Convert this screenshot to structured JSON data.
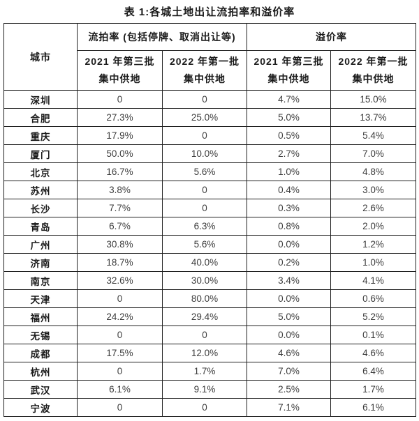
{
  "title": "表 1:各城土地出让流拍率和溢价率",
  "table": {
    "corner_header": "城市",
    "group_headers": {
      "failure_rate": "流拍率 (包括停牌、取消出让等)",
      "premium_rate": "溢价率"
    },
    "sub_headers": {
      "failure_2021": {
        "line1": "2021 年第三批",
        "line2": "集中供地"
      },
      "failure_2022": {
        "line1": "2022 年第一批",
        "line2": "集中供地"
      },
      "premium_2021": {
        "line1": "2021 年第三批",
        "line2": "集中供地"
      },
      "premium_2022": {
        "line1": "2022 年第一批",
        "line2": "集中供地"
      }
    },
    "columns": [
      "城市",
      "流拍率 2021 年第三批集中供地",
      "流拍率 2022 年第一批集中供地",
      "溢价率 2021 年第三批集中供地",
      "溢价率 2022 年第一批集中供地"
    ],
    "rows": [
      {
        "city": "深圳",
        "values": [
          "0",
          "0",
          "4.7%",
          "15.0%"
        ]
      },
      {
        "city": "合肥",
        "values": [
          "27.3%",
          "25.0%",
          "5.0%",
          "13.7%"
        ]
      },
      {
        "city": "重庆",
        "values": [
          "17.9%",
          "0",
          "0.5%",
          "5.4%"
        ]
      },
      {
        "city": "厦门",
        "values": [
          "50.0%",
          "10.0%",
          "2.7%",
          "7.0%"
        ]
      },
      {
        "city": "北京",
        "values": [
          "16.7%",
          "5.6%",
          "1.0%",
          "4.8%"
        ]
      },
      {
        "city": "苏州",
        "values": [
          "3.8%",
          "0",
          "0.4%",
          "3.0%"
        ]
      },
      {
        "city": "长沙",
        "values": [
          "7.7%",
          "0",
          "0.3%",
          "2.6%"
        ]
      },
      {
        "city": "青岛",
        "values": [
          "6.7%",
          "6.3%",
          "0.8%",
          "2.0%"
        ]
      },
      {
        "city": "广州",
        "values": [
          "30.8%",
          "5.6%",
          "0.0%",
          "1.2%"
        ]
      },
      {
        "city": "济南",
        "values": [
          "18.7%",
          "40.0%",
          "0.2%",
          "1.0%"
        ]
      },
      {
        "city": "南京",
        "values": [
          "32.6%",
          "30.0%",
          "3.4%",
          "4.1%"
        ]
      },
      {
        "city": "天津",
        "values": [
          "0",
          "80.0%",
          "0.0%",
          "0.6%"
        ]
      },
      {
        "city": "福州",
        "values": [
          "24.2%",
          "29.4%",
          "5.0%",
          "5.2%"
        ]
      },
      {
        "city": "无锡",
        "values": [
          "0",
          "0",
          "0.0%",
          "0.1%"
        ]
      },
      {
        "city": "成都",
        "values": [
          "17.5%",
          "12.0%",
          "4.6%",
          "4.6%"
        ]
      },
      {
        "city": "杭州",
        "values": [
          "0",
          "1.7%",
          "7.0%",
          "6.4%"
        ]
      },
      {
        "city": "武汉",
        "values": [
          "6.1%",
          "9.1%",
          "2.5%",
          "1.7%"
        ]
      },
      {
        "city": "宁波",
        "values": [
          "0",
          "0",
          "7.1%",
          "6.1%"
        ]
      }
    ],
    "colors": {
      "border": "#1f1f1f",
      "header_text": "#1a1a1a",
      "data_text": "#3d3d3d",
      "background": "#ffffff"
    }
  }
}
